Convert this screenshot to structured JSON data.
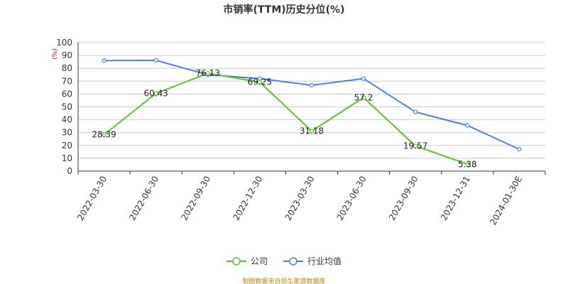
{
  "title": "市销率(TTM)历史分位(%)",
  "source": "制图数据来自恒生聚源数据库",
  "colors": {
    "company": "#5dc12f",
    "industry": "#4f81d9",
    "unit": "#cc0000"
  },
  "chart_data": {
    "type": "line",
    "title": "市销率(TTM)历史分位(%)",
    "ylabel": "(%)",
    "ylim": [
      0,
      100
    ],
    "yticks": [
      0,
      10,
      20,
      30,
      40,
      50,
      60,
      70,
      80,
      90,
      100
    ],
    "grid": true,
    "legend_position": "bottom",
    "categories": [
      "2022-03-30",
      "2022-06-30",
      "2022-09-30",
      "2022-12-30",
      "2023-03-30",
      "2023-06-30",
      "2023-09-30",
      "2023-12-31",
      "2024-01-30E"
    ],
    "series": [
      {
        "name": "公司",
        "values": [
          28.39,
          60.43,
          76.13,
          69.25,
          31.18,
          57.2,
          19.57,
          5.38,
          null
        ],
        "labels": [
          "28.39",
          "60.43",
          "76.13",
          "69.25",
          "31.18",
          "57.2",
          "19.57",
          "5.38",
          null
        ]
      },
      {
        "name": "行业均值",
        "values": [
          86,
          86.2,
          75,
          72,
          66.8,
          72,
          46,
          35.5,
          17
        ]
      }
    ]
  }
}
